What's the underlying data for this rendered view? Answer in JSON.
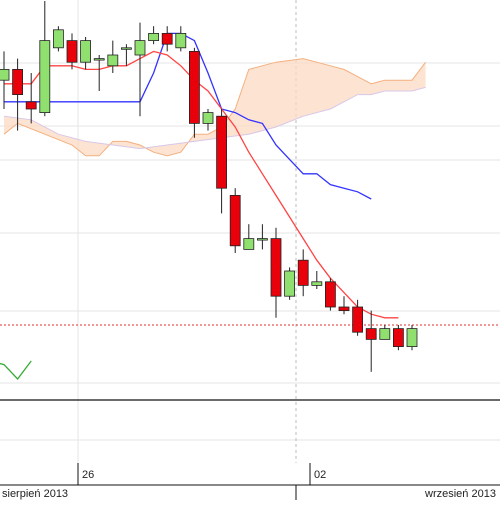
{
  "colors": {
    "bull": "#90e070",
    "bear": "#e8000b",
    "candle_outline": "#222222",
    "tenkan": "#ff4444",
    "kijun": "#3333ff",
    "cloud_fill": "#fbd9c3",
    "cloud_edge_a": "#f4b080",
    "cloud_edge_b": "#d8c8e8",
    "chikou": "#33aa33",
    "price_line": "#dd3333",
    "grid": "#e6e6e6",
    "axis": "#111111"
  },
  "dates": {
    "day_26": "26",
    "day_02": "02",
    "month_aug": "sierpień 2013",
    "month_sep": "wrzesień 2013"
  },
  "chart_data": {
    "type": "candlestick",
    "title": "",
    "xlabel": "",
    "ylabel": "",
    "y_axis": "unlabeled (price, arbitrary units 0–100)",
    "ylim": [
      0,
      100
    ],
    "grid": true,
    "x_labels": [
      "26",
      "02"
    ],
    "month_labels": [
      "sierpień 2013",
      "wrzesień 2013"
    ],
    "candles": [
      {
        "i": 0,
        "o": 88,
        "c": 91,
        "h": 96,
        "l": 80
      },
      {
        "i": 1,
        "o": 91,
        "c": 84,
        "h": 94,
        "l": 74
      },
      {
        "i": 2,
        "o": 82,
        "c": 80,
        "h": 90,
        "l": 76
      },
      {
        "i": 3,
        "o": 79,
        "c": 99,
        "h": 110,
        "l": 78
      },
      {
        "i": 4,
        "o": 97,
        "c": 102,
        "h": 103,
        "l": 96
      },
      {
        "i": 5,
        "o": 99,
        "c": 93,
        "h": 101,
        "l": 91
      },
      {
        "i": 6,
        "o": 93,
        "c": 99,
        "h": 100,
        "l": 91
      },
      {
        "i": 7,
        "o": 94,
        "c": 94,
        "h": 95,
        "l": 85
      },
      {
        "i": 8,
        "o": 92,
        "c": 95,
        "h": 99,
        "l": 90
      },
      {
        "i": 9,
        "o": 97,
        "c": 97,
        "h": 98,
        "l": 92
      },
      {
        "i": 10,
        "o": 95,
        "c": 99,
        "h": 104,
        "l": 78
      },
      {
        "i": 11,
        "o": 99,
        "c": 101,
        "h": 103,
        "l": 98
      },
      {
        "i": 12,
        "o": 101,
        "c": 98,
        "h": 103,
        "l": 96
      },
      {
        "i": 13,
        "o": 97,
        "c": 101,
        "h": 103,
        "l": 96
      },
      {
        "i": 14,
        "o": 96,
        "c": 76,
        "h": 97,
        "l": 72
      },
      {
        "i": 15,
        "o": 76,
        "c": 79,
        "h": 80,
        "l": 74
      },
      {
        "i": 16,
        "o": 78,
        "c": 58,
        "h": 80,
        "l": 51
      },
      {
        "i": 17,
        "o": 56,
        "c": 42,
        "h": 58,
        "l": 40
      },
      {
        "i": 18,
        "o": 41,
        "c": 44,
        "h": 48,
        "l": 41
      },
      {
        "i": 19,
        "o": 44,
        "c": 44,
        "h": 48,
        "l": 41
      },
      {
        "i": 20,
        "o": 44,
        "c": 28,
        "h": 47,
        "l": 22
      },
      {
        "i": 21,
        "o": 28,
        "c": 35,
        "h": 36,
        "l": 27
      },
      {
        "i": 22,
        "o": 38,
        "c": 31,
        "h": 41,
        "l": 28
      },
      {
        "i": 23,
        "o": 31,
        "c": 32,
        "h": 35,
        "l": 30
      },
      {
        "i": 24,
        "o": 32,
        "c": 25,
        "h": 33,
        "l": 24
      },
      {
        "i": 25,
        "o": 25,
        "c": 24,
        "h": 28,
        "l": 23
      },
      {
        "i": 26,
        "o": 25,
        "c": 18,
        "h": 27,
        "l": 17
      },
      {
        "i": 27,
        "o": 19,
        "c": 16,
        "h": 24,
        "l": 7
      },
      {
        "i": 28,
        "o": 16,
        "c": 19,
        "h": 20,
        "l": 16
      },
      {
        "i": 29,
        "o": 19,
        "c": 14,
        "h": 20,
        "l": 13
      },
      {
        "i": 30,
        "o": 14,
        "c": 19,
        "h": 20,
        "l": 13
      }
    ],
    "tenkan": [
      [
        0,
        87
      ],
      [
        2,
        87
      ],
      [
        3,
        92
      ],
      [
        5,
        92
      ],
      [
        6,
        91
      ],
      [
        7,
        91
      ],
      [
        8,
        92
      ],
      [
        9,
        92
      ],
      [
        10,
        94
      ],
      [
        11,
        96
      ],
      [
        12,
        95
      ],
      [
        13,
        92
      ],
      [
        14,
        88
      ],
      [
        15,
        85
      ],
      [
        16,
        80
      ],
      [
        17,
        75
      ],
      [
        18,
        68
      ],
      [
        19,
        62
      ],
      [
        20,
        56
      ],
      [
        21,
        50
      ],
      [
        22,
        44
      ],
      [
        23,
        38
      ],
      [
        24,
        33
      ],
      [
        25,
        29
      ],
      [
        26,
        25
      ],
      [
        27,
        23
      ],
      [
        28,
        22
      ],
      [
        29,
        22
      ]
    ],
    "kijun": [
      [
        0,
        82
      ],
      [
        10,
        82
      ],
      [
        11,
        90
      ],
      [
        12,
        101
      ],
      [
        13,
        101
      ],
      [
        14,
        99
      ],
      [
        15,
        90
      ],
      [
        16,
        80
      ],
      [
        17,
        79
      ],
      [
        18,
        77
      ],
      [
        19,
        76
      ],
      [
        20,
        70
      ],
      [
        21,
        66
      ],
      [
        22,
        62
      ],
      [
        23,
        62
      ],
      [
        24,
        59
      ],
      [
        25,
        58
      ],
      [
        26,
        57
      ],
      [
        27,
        55
      ]
    ],
    "senkou_a": [
      [
        0,
        73
      ],
      [
        1,
        76
      ],
      [
        3,
        73
      ],
      [
        5,
        70
      ],
      [
        6,
        67
      ],
      [
        7,
        67
      ],
      [
        8,
        71
      ],
      [
        9,
        71
      ],
      [
        10,
        70
      ],
      [
        11,
        68
      ],
      [
        12,
        67
      ],
      [
        13,
        68
      ],
      [
        14,
        73
      ],
      [
        15,
        73
      ],
      [
        16,
        75
      ],
      [
        17,
        80
      ],
      [
        18,
        91
      ],
      [
        20,
        93
      ],
      [
        22,
        94
      ],
      [
        24,
        92
      ],
      [
        25,
        91
      ],
      [
        26,
        89
      ],
      [
        27,
        87
      ],
      [
        28,
        88
      ],
      [
        30,
        88
      ],
      [
        31,
        93
      ]
    ],
    "senkou_b": [
      [
        0,
        78
      ],
      [
        2,
        77
      ],
      [
        4,
        73
      ],
      [
        6,
        71
      ],
      [
        8,
        70
      ],
      [
        10,
        69
      ],
      [
        12,
        70
      ],
      [
        14,
        71
      ],
      [
        16,
        72
      ],
      [
        18,
        73
      ],
      [
        20,
        75
      ],
      [
        22,
        78
      ],
      [
        24,
        80
      ],
      [
        25,
        82
      ],
      [
        26,
        84
      ],
      [
        27,
        84
      ],
      [
        28,
        85
      ],
      [
        30,
        85
      ],
      [
        31,
        86
      ]
    ],
    "chikou": [
      [
        -1,
        10
      ],
      [
        0,
        9
      ],
      [
        1,
        5
      ],
      [
        2,
        10
      ]
    ],
    "current_price": 20
  }
}
